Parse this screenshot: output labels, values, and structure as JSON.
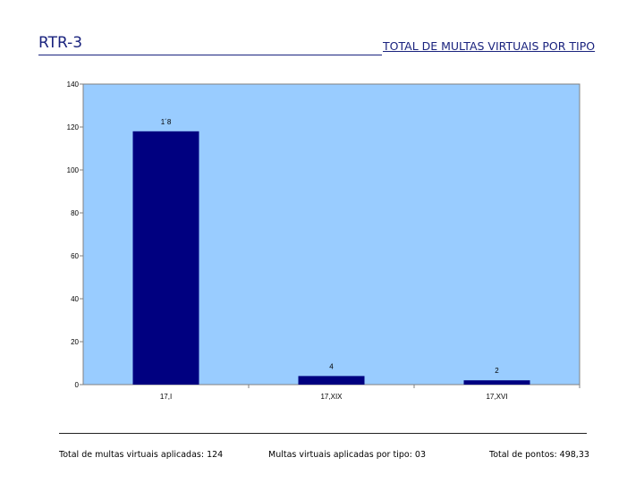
{
  "header": {
    "code": "RTR-3",
    "title": "TOTAL DE MULTAS VIRTUAIS POR TIPO"
  },
  "chart_data": {
    "type": "bar",
    "categories": [
      "17,I",
      "17,XIX",
      "17,XVI"
    ],
    "values": [
      118,
      4,
      2
    ],
    "data_labels": [
      "1´8",
      "4",
      "2"
    ],
    "yticks": [
      "0",
      "20",
      "40",
      "60",
      "80",
      "100",
      "120",
      "140"
    ],
    "ylim": [
      0,
      140
    ],
    "title": "",
    "xlabel": "",
    "ylabel": "",
    "plot_bg": "#99ccff",
    "bar_color": "#000080",
    "grid": false
  },
  "footer": {
    "total_aplicadas": "Total de multas virtuais aplicadas: 124",
    "por_tipo": "Multas virtuais aplicadas por tipo: 03",
    "total_pontos": "Total de pontos: 498,33"
  }
}
